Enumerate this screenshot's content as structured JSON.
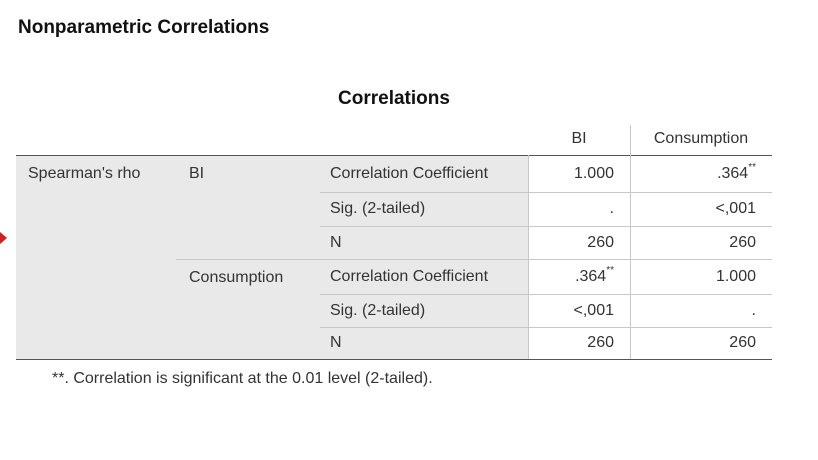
{
  "heading": "Nonparametric Correlations",
  "table": {
    "title": "Correlations",
    "columns": [
      "BI",
      "Consumption"
    ],
    "row_group": "Spearman's rho",
    "blocks": [
      {
        "variable": "BI",
        "rows": [
          {
            "stat": "Correlation Coefficient",
            "cells": [
              {
                "text": "1.000"
              },
              {
                "text": ".364",
                "sup": "**"
              }
            ]
          },
          {
            "stat": "Sig. (2-tailed)",
            "cells": [
              {
                "text": "."
              },
              {
                "text": "<,001"
              }
            ]
          },
          {
            "stat": "N",
            "cells": [
              {
                "text": "260"
              },
              {
                "text": "260"
              }
            ]
          }
        ]
      },
      {
        "variable": "Consumption",
        "rows": [
          {
            "stat": "Correlation Coefficient",
            "cells": [
              {
                "text": ".364",
                "sup": "**"
              },
              {
                "text": "1.000"
              }
            ]
          },
          {
            "stat": "Sig. (2-tailed)",
            "cells": [
              {
                "text": "<,001"
              },
              {
                "text": "."
              }
            ]
          },
          {
            "stat": "N",
            "cells": [
              {
                "text": "260"
              },
              {
                "text": "260"
              }
            ]
          }
        ]
      }
    ],
    "footnote": "**. Correlation is significant at the 0.01 level (2-tailed)."
  }
}
